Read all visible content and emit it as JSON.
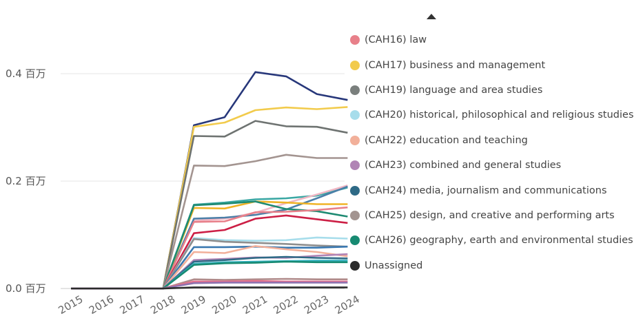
{
  "legend": {
    "items": [
      {
        "label": "(CAH16) law",
        "color": "#E8808A"
      },
      {
        "label": "(CAH17) business and management",
        "color": "#F2CB4C"
      },
      {
        "label": "(CAH19) language and area studies",
        "color": "#7A7F7D"
      },
      {
        "label": "(CAH20) historical, philosophical and religious studies",
        "color": "#A7DDEB"
      },
      {
        "label": "(CAH22) education and teaching",
        "color": "#F2B09A"
      },
      {
        "label": "(CAH23) combined and general studies",
        "color": "#B184B5"
      },
      {
        "label": "(CAH24) media, journalism and communications",
        "color": "#2E6A86"
      },
      {
        "label": "(CAH25) design, and creative and performing arts",
        "color": "#A39490"
      },
      {
        "label": "(CAH26) geography, earth and environmental studies",
        "color": "#178A72"
      },
      {
        "label": "Unassigned",
        "color": "#2B2B2B"
      }
    ],
    "scroll_icon": "triangle-up-icon"
  },
  "chart_data": {
    "type": "line",
    "x": [
      "2015",
      "2016",
      "2017",
      "2018",
      "2019",
      "2020",
      "2021",
      "2022",
      "2023",
      "2024"
    ],
    "y_ticks": [
      {
        "value": 0,
        "label": "0.0 百万"
      },
      {
        "value": 0.2,
        "label": "0.2 百万"
      },
      {
        "value": 0.4,
        "label": "0.4 百万"
      }
    ],
    "ylim": [
      0,
      0.45
    ],
    "series": [
      {
        "name": "navy",
        "color": "#27377A",
        "values": [
          0,
          0,
          0,
          0,
          0.304,
          0.319,
          0.403,
          0.395,
          0.362,
          0.351
        ]
      },
      {
        "name": "(CAH17) business and management",
        "color": "#F2CB4C",
        "values": [
          0,
          0,
          0,
          0,
          0.301,
          0.309,
          0.332,
          0.337,
          0.334,
          0.338
        ]
      },
      {
        "name": "(CAH19) language and area studies",
        "color": "#6E7371",
        "values": [
          0,
          0,
          0,
          0,
          0.284,
          0.283,
          0.312,
          0.302,
          0.301,
          0.29
        ]
      },
      {
        "name": "(CAH25) design, and creative and performing arts",
        "color": "#A39490",
        "values": [
          0,
          0,
          0,
          0,
          0.229,
          0.228,
          0.237,
          0.249,
          0.243,
          0.243
        ]
      },
      {
        "name": "teal-light",
        "color": "#3AA7A3",
        "values": [
          0,
          0,
          0,
          0,
          0.156,
          0.16,
          0.166,
          0.168,
          0.173,
          0.188
        ]
      },
      {
        "name": "pink-light",
        "color": "#F0B7C4",
        "values": [
          0,
          0,
          0,
          0,
          0.126,
          0.13,
          0.141,
          0.159,
          0.175,
          0.192
        ]
      },
      {
        "name": "steel-blue",
        "color": "#4B7FA8",
        "values": [
          0,
          0,
          0,
          0,
          0.13,
          0.132,
          0.137,
          0.147,
          0.168,
          0.19
        ]
      },
      {
        "name": "yellow-2",
        "color": "#F0B326",
        "values": [
          0,
          0,
          0,
          0,
          0.15,
          0.149,
          0.162,
          0.16,
          0.157,
          0.157
        ]
      },
      {
        "name": "green-2",
        "color": "#1E8A72",
        "values": [
          0,
          0,
          0,
          0,
          0.155,
          0.158,
          0.162,
          0.148,
          0.144,
          0.134
        ]
      },
      {
        "name": "(CAH16) law",
        "color": "#E8808A",
        "values": [
          0,
          0,
          0,
          0,
          0.124,
          0.125,
          0.142,
          0.143,
          0.146,
          0.151
        ]
      },
      {
        "name": "crimson",
        "color": "#CC1F45",
        "values": [
          0,
          0,
          0,
          0,
          0.103,
          0.109,
          0.13,
          0.136,
          0.129,
          0.122
        ]
      },
      {
        "name": "(CAH20) historical, philosophical and religious studies",
        "color": "#A7DDEB",
        "values": [
          0,
          0,
          0,
          0,
          0.094,
          0.09,
          0.089,
          0.09,
          0.095,
          0.093
        ]
      },
      {
        "name": "grey-2",
        "color": "#8E8E8E",
        "values": [
          0,
          0,
          0,
          0,
          0.092,
          0.087,
          0.085,
          0.083,
          0.08,
          0.078
        ]
      },
      {
        "name": "blue-mid",
        "color": "#3A78B0",
        "values": [
          0,
          0,
          0,
          0,
          0.077,
          0.077,
          0.078,
          0.076,
          0.076,
          0.078
        ]
      },
      {
        "name": "(CAH22) education and teaching",
        "color": "#F2B09A",
        "values": [
          0,
          0,
          0,
          0,
          0.068,
          0.066,
          0.079,
          0.073,
          0.068,
          0.06
        ]
      },
      {
        "name": "(CAH23) combined and general studies",
        "color": "#B184B5",
        "values": [
          0,
          0,
          0,
          0,
          0.053,
          0.055,
          0.058,
          0.057,
          0.061,
          0.064
        ]
      },
      {
        "name": "(CAH24) media, journalism and communications",
        "color": "#2E6A86",
        "values": [
          0,
          0,
          0,
          0,
          0.05,
          0.053,
          0.057,
          0.059,
          0.057,
          0.056
        ]
      },
      {
        "name": "cyan-2",
        "color": "#39B4C2",
        "values": [
          0,
          0,
          0,
          0,
          0.046,
          0.049,
          0.05,
          0.051,
          0.052,
          0.052
        ]
      },
      {
        "name": "(CAH26) geography, earth and environmental studies",
        "color": "#178A72",
        "values": [
          0,
          0,
          0,
          0,
          0.044,
          0.047,
          0.048,
          0.05,
          0.049,
          0.049
        ]
      },
      {
        "name": "mauve-low",
        "color": "#B08A8A",
        "values": [
          0,
          0,
          0,
          0,
          0.017,
          0.016,
          0.017,
          0.018,
          0.017,
          0.017
        ]
      },
      {
        "name": "pink-low",
        "color": "#E66F8C",
        "values": [
          0,
          0,
          0,
          0,
          0.013,
          0.013,
          0.014,
          0.013,
          0.013,
          0.013
        ]
      },
      {
        "name": "purple-low",
        "color": "#8E73B0",
        "values": [
          0,
          0,
          0,
          0,
          0.01,
          0.011,
          0.011,
          0.011,
          0.011,
          0.011
        ]
      },
      {
        "name": "Unassigned",
        "color": "#2B2B2B",
        "values": [
          0,
          0,
          0,
          0,
          0.002,
          0.002,
          0.002,
          0.002,
          0.002,
          0.002
        ]
      }
    ]
  }
}
